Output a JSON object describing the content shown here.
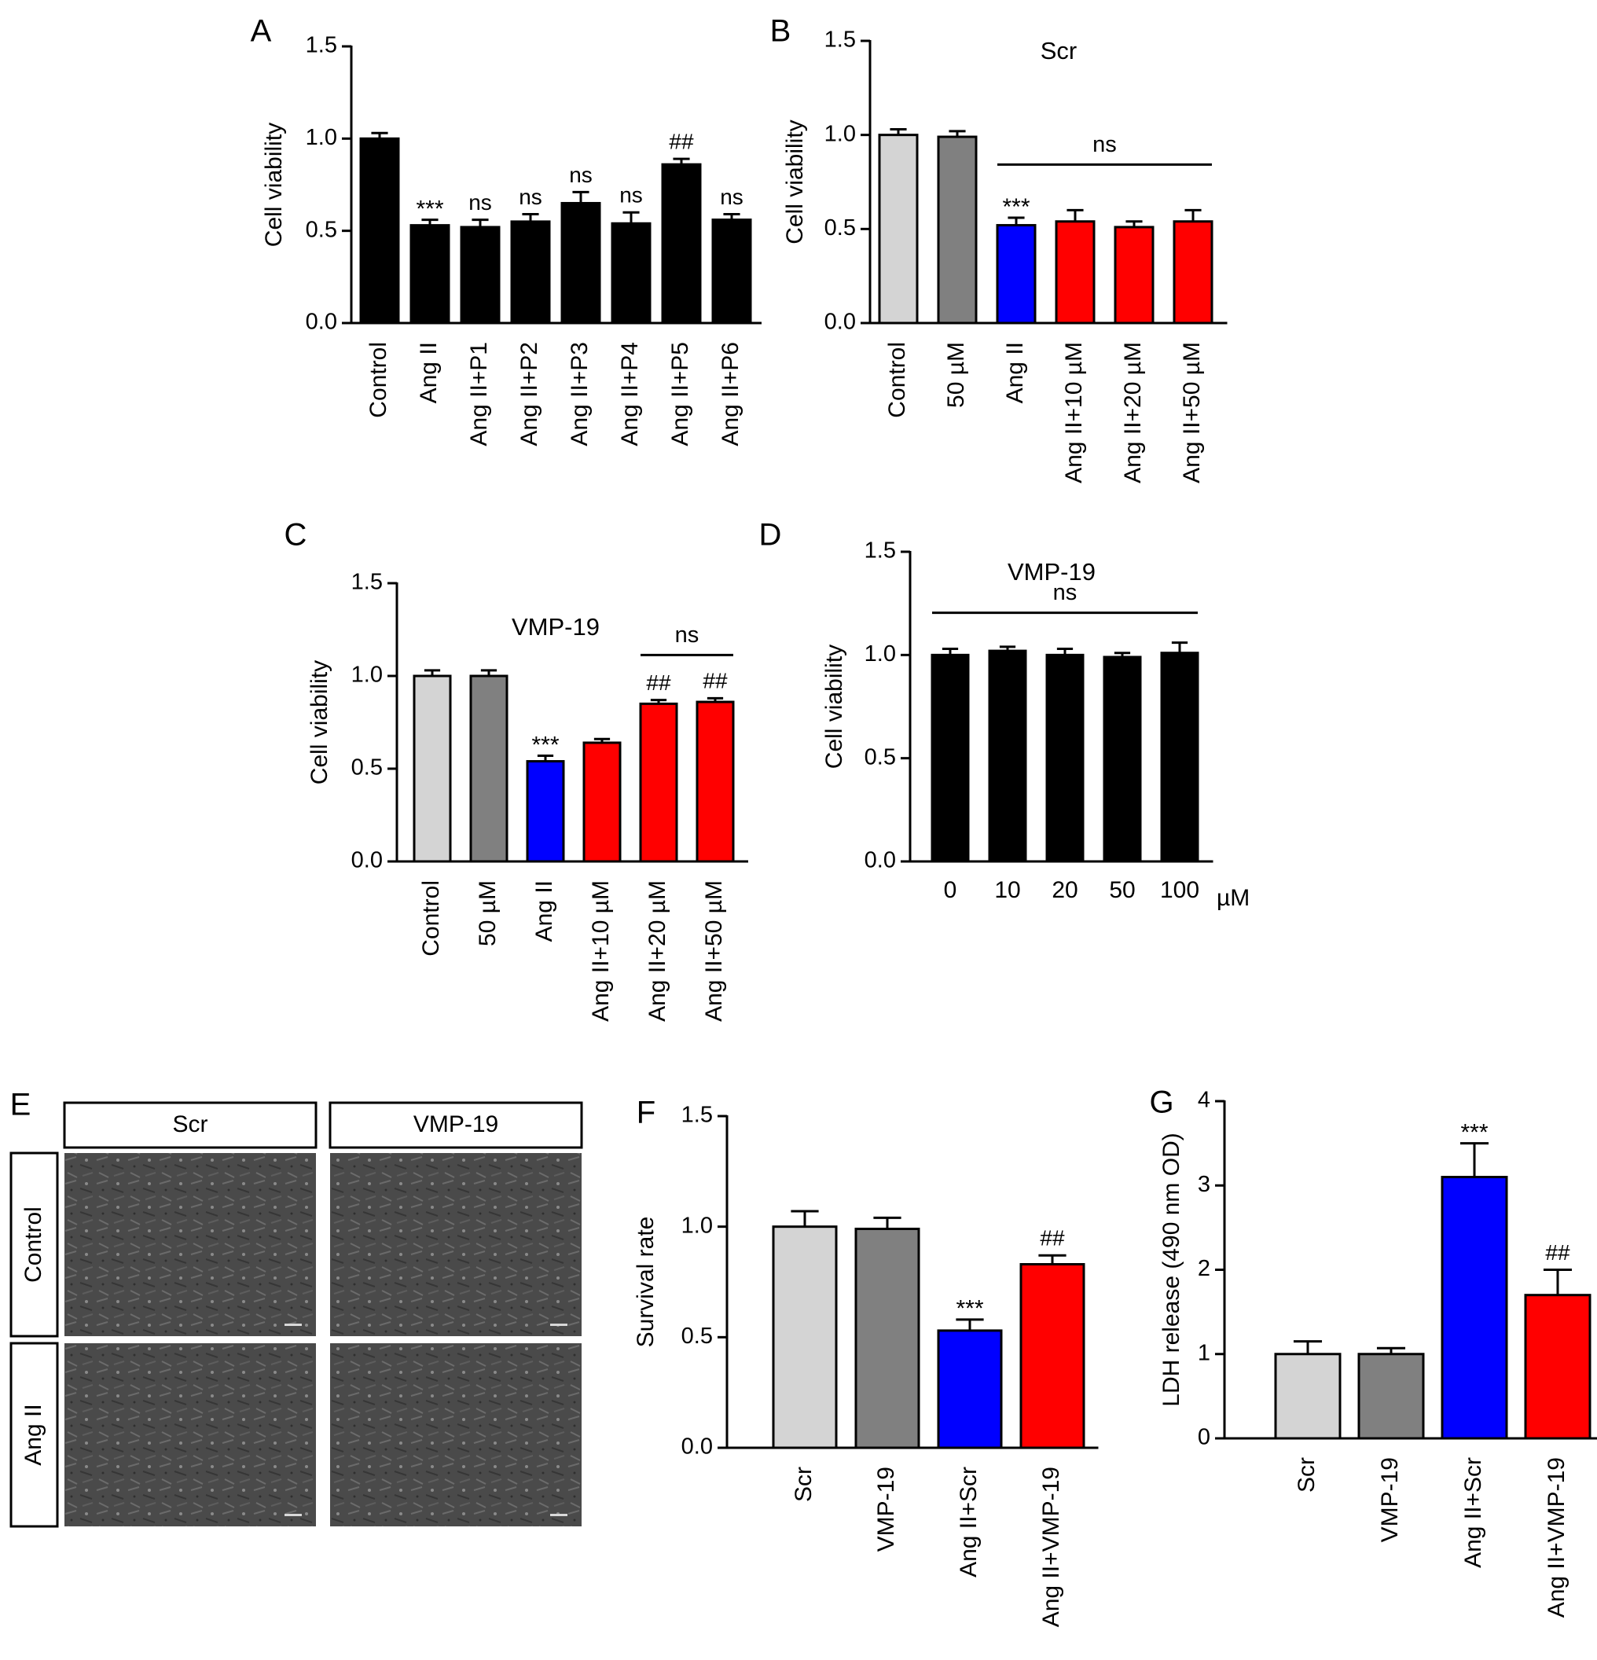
{
  "chart_data": [
    {
      "panel": "A",
      "type": "bar",
      "title": "",
      "xlabel": "",
      "ylabel": "Cell viability",
      "ylim": [
        0,
        1.5
      ],
      "yticks": [
        "0.0",
        "0.5",
        "1.0",
        "1.5"
      ],
      "categories": [
        "Control",
        "Ang II",
        "Ang II+P1",
        "Ang II+P2",
        "Ang II+P3",
        "Ang II+P4",
        "Ang II+P5",
        "Ang II+P6"
      ],
      "values": [
        1.0,
        0.53,
        0.52,
        0.55,
        0.65,
        0.54,
        0.86,
        0.56
      ],
      "errors": [
        0.03,
        0.03,
        0.04,
        0.04,
        0.06,
        0.06,
        0.03,
        0.03
      ],
      "colors": [
        "#000000",
        "#000000",
        "#000000",
        "#000000",
        "#000000",
        "#000000",
        "#000000",
        "#000000"
      ],
      "annotations": [
        "",
        "***",
        "ns",
        "ns",
        "ns",
        "ns",
        "##",
        "ns"
      ]
    },
    {
      "panel": "B",
      "type": "bar",
      "title": "Scr",
      "xlabel": "",
      "ylabel": "Cell viability",
      "ylim": [
        0,
        1.5
      ],
      "yticks": [
        "0.0",
        "0.5",
        "1.0",
        "1.5"
      ],
      "categories": [
        "Control",
        "50 µM",
        "Ang II",
        "Ang II+10 µM",
        "Ang II+20 µM",
        "Ang II+50 µM"
      ],
      "values": [
        1.0,
        0.99,
        0.52,
        0.54,
        0.51,
        0.54
      ],
      "errors": [
        0.03,
        0.03,
        0.04,
        0.06,
        0.03,
        0.06
      ],
      "colors": [
        "#d4d4d4",
        "#808080",
        "#0000ff",
        "#ff0000",
        "#ff0000",
        "#ff0000"
      ],
      "annotations": [
        "",
        "",
        "***",
        "",
        "",
        ""
      ],
      "brackets": [
        {
          "from": 2,
          "to": 5,
          "label": "ns"
        }
      ]
    },
    {
      "panel": "C",
      "type": "bar",
      "title": "VMP-19",
      "xlabel": "",
      "ylabel": "Cell viability",
      "ylim": [
        0,
        1.5
      ],
      "yticks": [
        "0.0",
        "0.5",
        "1.0",
        "1.5"
      ],
      "categories": [
        "Control",
        "50 µM",
        "Ang II",
        "Ang II+10 µM",
        "Ang II+20 µM",
        "Ang II+50 µM"
      ],
      "values": [
        1.0,
        1.0,
        0.54,
        0.64,
        0.85,
        0.86
      ],
      "errors": [
        0.03,
        0.03,
        0.03,
        0.02,
        0.02,
        0.02
      ],
      "colors": [
        "#d4d4d4",
        "#808080",
        "#0000ff",
        "#ff0000",
        "#ff0000",
        "#ff0000"
      ],
      "annotations": [
        "",
        "",
        "***",
        "",
        "##",
        "##"
      ],
      "brackets": [
        {
          "from": 4,
          "to": 5,
          "label": "ns"
        }
      ]
    },
    {
      "panel": "D",
      "type": "bar",
      "title": "VMP-19",
      "xlabel": "µM",
      "ylabel": "Cell viability",
      "ylim": [
        0,
        1.5
      ],
      "yticks": [
        "0.0",
        "0.5",
        "1.0",
        "1.5"
      ],
      "categories": [
        "0",
        "10",
        "20",
        "50",
        "100"
      ],
      "values": [
        1.0,
        1.02,
        1.0,
        0.99,
        1.01
      ],
      "errors": [
        0.03,
        0.02,
        0.03,
        0.02,
        0.05
      ],
      "colors": [
        "#000000",
        "#000000",
        "#000000",
        "#000000",
        "#000000"
      ],
      "annotations": [
        "",
        "",
        "",
        "",
        ""
      ],
      "brackets": [
        {
          "from": 0,
          "to": 4,
          "label": "ns"
        }
      ]
    },
    {
      "panel": "F",
      "type": "bar",
      "title": "",
      "xlabel": "",
      "ylabel": "Survival rate",
      "ylim": [
        0,
        1.5
      ],
      "yticks": [
        "0.0",
        "0.5",
        "1.0",
        "1.5"
      ],
      "categories": [
        "Scr",
        "VMP-19",
        "Ang II+Scr",
        "Ang II+VMP-19"
      ],
      "values": [
        1.0,
        0.99,
        0.53,
        0.83
      ],
      "errors": [
        0.07,
        0.05,
        0.05,
        0.04
      ],
      "colors": [
        "#d4d4d4",
        "#808080",
        "#0000ff",
        "#ff0000"
      ],
      "annotations": [
        "",
        "",
        "***",
        "##"
      ]
    },
    {
      "panel": "G",
      "type": "bar",
      "title": "",
      "xlabel": "",
      "ylabel": "LDH release (490 nm OD)",
      "ylim": [
        0,
        4
      ],
      "yticks": [
        "0",
        "1",
        "2",
        "3",
        "4"
      ],
      "categories": [
        "Scr",
        "VMP-19",
        "Ang II+Scr",
        "Ang II+VMP-19"
      ],
      "values": [
        1.0,
        1.0,
        3.1,
        1.7
      ],
      "errors": [
        0.15,
        0.07,
        0.4,
        0.3
      ],
      "colors": [
        "#d4d4d4",
        "#808080",
        "#0000ff",
        "#ff0000"
      ],
      "annotations": [
        "",
        "",
        "***",
        "##"
      ]
    }
  ],
  "micrographs": {
    "panel": "E",
    "columns": [
      "Scr",
      "VMP-19"
    ],
    "rows": [
      "Control",
      "Ang II"
    ]
  }
}
